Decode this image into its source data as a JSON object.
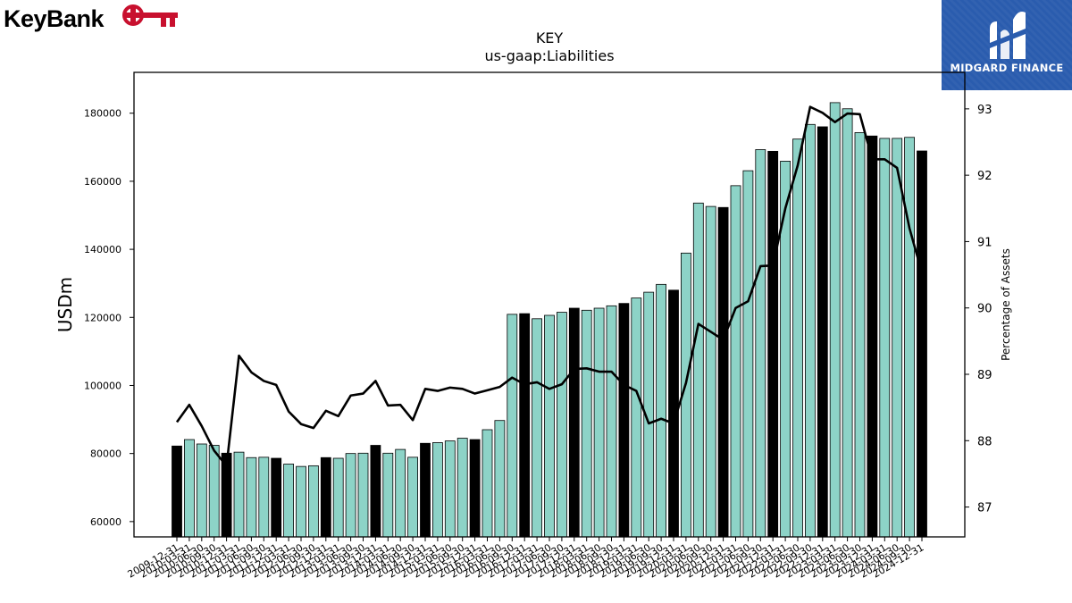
{
  "logos": {
    "left": {
      "text": "KeyBank",
      "color": "#c8102e"
    },
    "right": {
      "text": "MIDGARD FINANCE",
      "color": "#2a5cae"
    }
  },
  "chart_data": {
    "type": "bar",
    "title": "KEY",
    "subtitle": "us-gaap:Liabilities",
    "ylabel": "USDm",
    "y2label": "Percentage of Assets",
    "ylim": [
      55500,
      192000
    ],
    "y2lim": [
      86.55,
      93.55
    ],
    "yticks": [
      60000,
      80000,
      100000,
      120000,
      140000,
      160000,
      180000
    ],
    "y2ticks": [
      87,
      88,
      89,
      90,
      91,
      92,
      93
    ],
    "colors": {
      "quarter_bar": "#8dd3c7",
      "annual_bar": "#000000",
      "line": "#000000"
    },
    "categories": [
      "2009-12-31",
      "2010-03-31",
      "2010-06-30",
      "2010-09-30",
      "2010-12-31",
      "2011-03-31",
      "2011-06-30",
      "2011-09-30",
      "2011-12-31",
      "2012-03-31",
      "2012-06-30",
      "2012-09-30",
      "2012-12-31",
      "2013-03-31",
      "2013-06-30",
      "2013-09-30",
      "2013-12-31",
      "2014-03-31",
      "2014-06-30",
      "2014-09-30",
      "2014-12-31",
      "2015-03-31",
      "2015-06-30",
      "2015-09-30",
      "2015-12-31",
      "2016-03-31",
      "2016-06-30",
      "2016-09-30",
      "2016-12-31",
      "2017-03-31",
      "2017-06-30",
      "2017-09-30",
      "2017-12-31",
      "2018-03-31",
      "2018-06-30",
      "2018-09-30",
      "2018-12-31",
      "2019-03-31",
      "2019-06-30",
      "2019-09-30",
      "2019-12-31",
      "2020-03-31",
      "2020-06-30",
      "2020-09-30",
      "2020-12-31",
      "2021-03-31",
      "2021-06-30",
      "2021-09-30",
      "2021-12-31",
      "2022-03-31",
      "2022-06-30",
      "2022-09-30",
      "2022-12-31",
      "2023-03-31",
      "2023-06-30",
      "2023-09-30",
      "2023-12-31",
      "2024-03-31",
      "2024-06-30",
      "2024-09-30",
      "2024-12-31"
    ],
    "annual": [
      true,
      false,
      false,
      false,
      true,
      false,
      false,
      false,
      true,
      false,
      false,
      false,
      true,
      false,
      false,
      false,
      true,
      false,
      false,
      false,
      true,
      false,
      false,
      false,
      true,
      false,
      false,
      false,
      true,
      false,
      false,
      false,
      true,
      false,
      false,
      false,
      true,
      false,
      false,
      false,
      true,
      false,
      false,
      false,
      true,
      false,
      false,
      false,
      true,
      false,
      false,
      false,
      true,
      false,
      false,
      false,
      true,
      false,
      false,
      false,
      true
    ],
    "series": [
      {
        "name": "Liabilities",
        "values": [
          82200,
          84100,
          82800,
          82400,
          80100,
          80400,
          78800,
          78900,
          78600,
          76900,
          76200,
          76400,
          78800,
          78600,
          80000,
          80100,
          82400,
          80100,
          81200,
          78900,
          83000,
          83200,
          83700,
          84500,
          84100,
          87000,
          89700,
          120900,
          121100,
          119600,
          120600,
          121500,
          122700,
          122100,
          122700,
          123400,
          124100,
          125700,
          127400,
          129700,
          128000,
          138900,
          153600,
          152600,
          152300,
          158700,
          163100,
          169300,
          168800,
          165900,
          172400,
          176700,
          176000,
          183100,
          181300,
          174300,
          173300,
          172600,
          172600,
          172900,
          168900
        ]
      },
      {
        "name": "Percentage of Assets",
        "axis": "right",
        "values": [
          88.28,
          88.54,
          88.22,
          87.85,
          87.62,
          89.28,
          89.03,
          88.9,
          88.84,
          88.44,
          88.25,
          88.19,
          88.45,
          88.37,
          88.68,
          88.71,
          88.9,
          88.53,
          88.54,
          88.31,
          88.78,
          88.75,
          88.8,
          88.78,
          88.71,
          88.76,
          88.81,
          88.95,
          88.85,
          88.88,
          88.78,
          88.85,
          89.08,
          89.09,
          89.04,
          89.04,
          88.84,
          88.75,
          88.26,
          88.33,
          88.26,
          88.87,
          89.76,
          89.64,
          89.52,
          90.0,
          90.1,
          90.63,
          90.64,
          91.5,
          92.15,
          93.03,
          92.94,
          92.8,
          92.93,
          92.92,
          92.24,
          92.24,
          92.11,
          91.2,
          90.53
        ]
      }
    ]
  }
}
